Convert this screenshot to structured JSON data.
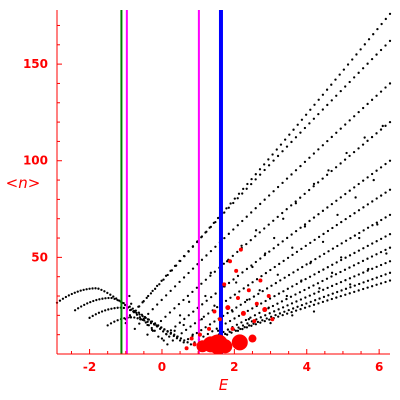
{
  "chart_data": {
    "type": "scatter",
    "xlabel": "E",
    "ylabel": "<n>",
    "xlim": [
      -2.9,
      6.3
    ],
    "ylim": [
      0,
      178
    ],
    "xticks": [
      -2,
      0,
      2,
      4,
      6
    ],
    "yticks": [
      50,
      100,
      150
    ],
    "colors": {
      "axis": "#ff0000",
      "dots": "#000000",
      "bubbles": "#ff0000",
      "green_line": "#008000",
      "magenta_line": "#ff00ff",
      "blue_line": "#0000ff"
    },
    "vertical_lines": [
      {
        "x": -1.12,
        "color": "#008000",
        "width": 2
      },
      {
        "x": -0.97,
        "color": "#ff00ff",
        "width": 2
      },
      {
        "x": 1.02,
        "color": "#ff00ff",
        "width": 2
      },
      {
        "x": 1.63,
        "color": "#0000ff",
        "width": 4
      }
    ],
    "dot_bands": [
      {
        "x_start": -1.0,
        "x_end": 6.3,
        "y_start": 16,
        "y_end": 162,
        "n": 60
      },
      {
        "x_start": -0.75,
        "x_end": 6.3,
        "y_start": 13,
        "y_end": 140,
        "n": 58
      },
      {
        "x_start": -0.4,
        "x_end": 6.3,
        "y_start": 10,
        "y_end": 120,
        "n": 55
      },
      {
        "x_start": 0.0,
        "x_end": 6.3,
        "y_start": 8,
        "y_end": 100,
        "n": 52
      },
      {
        "x_start": 0.3,
        "x_end": 6.3,
        "y_start": 7,
        "y_end": 85,
        "n": 50
      },
      {
        "x_start": 0.6,
        "x_end": 6.3,
        "y_start": 6,
        "y_end": 72,
        "n": 48
      },
      {
        "x_start": 0.9,
        "x_end": 6.3,
        "y_start": 6,
        "y_end": 62,
        "n": 45
      },
      {
        "x_start": 1.2,
        "x_end": 6.3,
        "y_start": 6,
        "y_end": 55,
        "n": 42
      },
      {
        "x_start": 1.5,
        "x_end": 6.3,
        "y_start": 8,
        "y_end": 48,
        "n": 40
      },
      {
        "x_start": 1.8,
        "x_end": 6.3,
        "y_start": 10,
        "y_end": 42,
        "n": 38
      },
      {
        "x_start": 2.1,
        "x_end": 6.3,
        "y_start": 12,
        "y_end": 38,
        "n": 35
      }
    ],
    "top_curve": {
      "x_start": -1.0,
      "x_end": 6.3,
      "y_start": 18,
      "y_end": 176,
      "n": 64
    },
    "left_curves": [
      {
        "x_start": -2.9,
        "x_end": -0.2,
        "y_peak": 34,
        "x_peak": -1.8,
        "y_end": 12,
        "n": 34
      },
      {
        "x_start": -2.4,
        "x_end": 0.2,
        "y_peak": 29,
        "x_peak": -1.4,
        "y_end": 9,
        "n": 32
      },
      {
        "x_start": -2.0,
        "x_end": 0.5,
        "y_peak": 24,
        "x_peak": -1.1,
        "y_end": 7,
        "n": 30
      },
      {
        "x_start": -1.5,
        "x_end": 0.8,
        "y_peak": 19,
        "x_peak": -0.8,
        "y_end": 5,
        "n": 26
      }
    ],
    "scatter_dots": [
      [
        -0.9,
        30
      ],
      [
        -0.85,
        26
      ],
      [
        -0.78,
        22
      ],
      [
        -0.6,
        18
      ],
      [
        -0.4,
        15
      ],
      [
        -0.25,
        12
      ],
      [
        -0.1,
        9
      ],
      [
        0.05,
        7
      ],
      [
        0.15,
        5
      ],
      [
        0.35,
        12
      ],
      [
        0.5,
        20
      ],
      [
        0.6,
        15
      ],
      [
        0.75,
        27
      ],
      [
        0.85,
        10
      ],
      [
        1.1,
        18
      ],
      [
        1.2,
        30
      ],
      [
        1.35,
        42
      ],
      [
        1.45,
        25
      ],
      [
        1.55,
        12
      ],
      [
        1.7,
        35
      ],
      [
        1.8,
        48
      ],
      [
        1.95,
        22
      ],
      [
        2.05,
        37
      ],
      [
        2.2,
        56
      ],
      [
        2.35,
        28
      ],
      [
        2.5,
        45
      ],
      [
        2.6,
        64
      ],
      [
        2.7,
        33
      ],
      [
        2.85,
        52
      ],
      [
        2.95,
        24
      ],
      [
        3.1,
        60
      ],
      [
        3.2,
        41
      ],
      [
        3.35,
        70
      ],
      [
        3.45,
        30
      ],
      [
        3.6,
        55
      ],
      [
        3.7,
        78
      ],
      [
        3.85,
        38
      ],
      [
        3.95,
        66
      ],
      [
        4.1,
        47
      ],
      [
        4.2,
        88
      ],
      [
        4.35,
        34
      ],
      [
        4.45,
        58
      ],
      [
        4.6,
        95
      ],
      [
        4.7,
        42
      ],
      [
        4.85,
        72
      ],
      [
        4.95,
        50
      ],
      [
        5.1,
        104
      ],
      [
        5.2,
        36
      ],
      [
        5.35,
        81
      ],
      [
        5.45,
        60
      ],
      [
        5.6,
        112
      ],
      [
        5.7,
        44
      ],
      [
        5.85,
        90
      ],
      [
        5.95,
        67
      ],
      [
        6.1,
        118
      ],
      [
        6.2,
        52
      ],
      [
        2.4,
        18
      ],
      [
        3.0,
        16
      ],
      [
        3.6,
        20
      ],
      [
        4.2,
        22
      ]
    ],
    "red_bubbles": [
      {
        "x": 1.12,
        "y": 4,
        "r": 6
      },
      {
        "x": 1.35,
        "y": 5,
        "r": 8
      },
      {
        "x": 1.55,
        "y": 5,
        "r": 10
      },
      {
        "x": 1.75,
        "y": 4,
        "r": 7
      },
      {
        "x": 2.15,
        "y": 6,
        "r": 8
      },
      {
        "x": 2.5,
        "y": 8,
        "r": 4
      },
      {
        "x": 0.68,
        "y": 3,
        "r": 2
      },
      {
        "x": 0.9,
        "y": 5,
        "r": 2
      },
      {
        "x": 1.05,
        "y": 10,
        "r": 2
      },
      {
        "x": 1.3,
        "y": 13,
        "r": 2
      },
      {
        "x": 1.6,
        "y": 18,
        "r": 2
      },
      {
        "x": 1.82,
        "y": 24,
        "r": 2.5
      },
      {
        "x": 1.95,
        "y": 13,
        "r": 2
      },
      {
        "x": 2.1,
        "y": 29,
        "r": 2
      },
      {
        "x": 2.25,
        "y": 21,
        "r": 2.5
      },
      {
        "x": 2.4,
        "y": 33,
        "r": 2
      },
      {
        "x": 2.55,
        "y": 17,
        "r": 2
      },
      {
        "x": 2.62,
        "y": 26,
        "r": 2
      },
      {
        "x": 2.72,
        "y": 38,
        "r": 2
      },
      {
        "x": 2.84,
        "y": 23,
        "r": 2.5
      },
      {
        "x": 2.95,
        "y": 30,
        "r": 2
      },
      {
        "x": 2.05,
        "y": 43,
        "r": 2
      },
      {
        "x": 1.88,
        "y": 48,
        "r": 2
      },
      {
        "x": 2.18,
        "y": 54,
        "r": 2
      },
      {
        "x": 1.72,
        "y": 36,
        "r": 2
      },
      {
        "x": 3.05,
        "y": 18,
        "r": 2
      },
      {
        "x": 1.45,
        "y": 22,
        "r": 2
      },
      {
        "x": 0.82,
        "y": 8,
        "r": 2
      }
    ]
  }
}
